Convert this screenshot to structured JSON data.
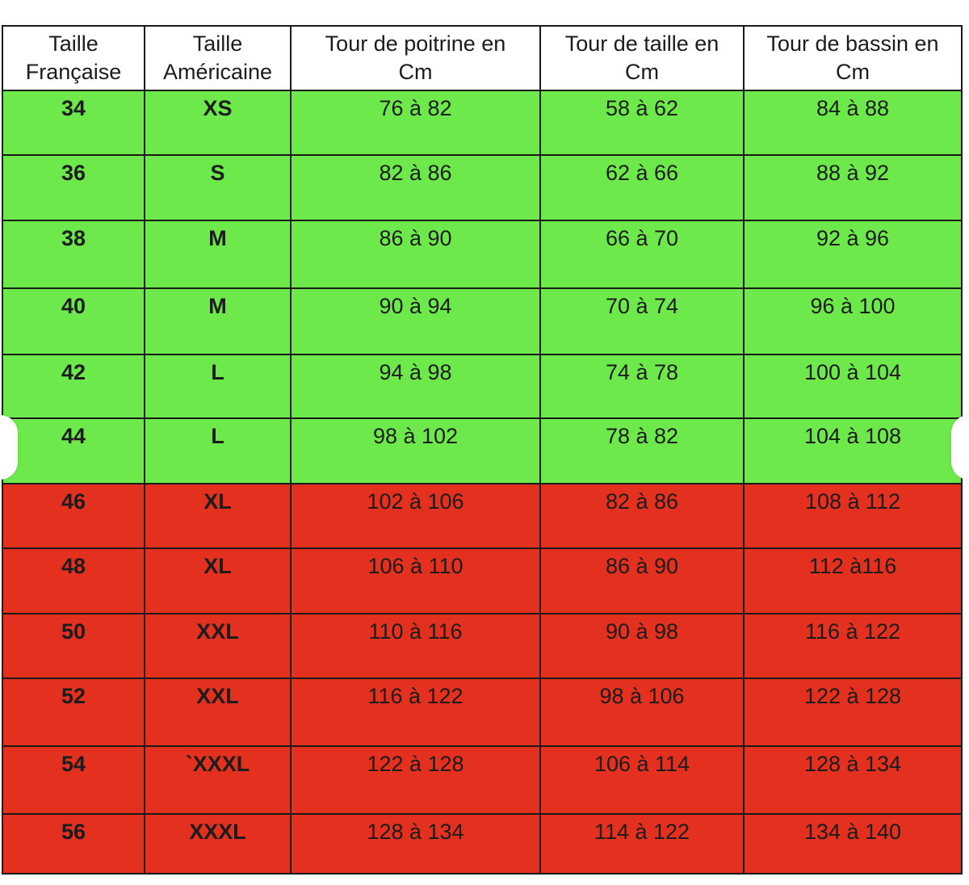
{
  "table": {
    "headers": [
      [
        "Taille",
        "Française"
      ],
      [
        "Taille",
        "Américaine"
      ],
      [
        "Tour de poitrine en",
        "Cm"
      ],
      [
        "Tour de taille en",
        "Cm"
      ],
      [
        "Tour de bassin en",
        "Cm"
      ]
    ],
    "rows": [
      {
        "fr": "34",
        "us": "XS",
        "poitrine": "76 à 82",
        "taille": "58 à 62",
        "bassin": "84 à 88",
        "status": "ok",
        "color": "#6ee94c"
      },
      {
        "fr": "36",
        "us": "S",
        "poitrine": "82 à 86",
        "taille": "62 à 66",
        "bassin": "88 à 92",
        "status": "ok",
        "color": "#6ee94c"
      },
      {
        "fr": "38",
        "us": "M",
        "poitrine": "86 à 90",
        "taille": "66 à 70",
        "bassin": "92 à 96",
        "status": "ok",
        "color": "#6ee94c"
      },
      {
        "fr": "40",
        "us": "M",
        "poitrine": "90 à 94",
        "taille": "70 à 74",
        "bassin": "96 à 100",
        "status": "ok",
        "color": "#6ee94c"
      },
      {
        "fr": "42",
        "us": "L",
        "poitrine": "94 à 98",
        "taille": "74 à 78",
        "bassin": "100 à 104",
        "status": "ok",
        "color": "#6ee94c"
      },
      {
        "fr": "44",
        "us": "L",
        "poitrine": "98 à 102",
        "taille": "78 à 82",
        "bassin": "104 à 108",
        "status": "ok",
        "color": "#6ee94c"
      },
      {
        "fr": "46",
        "us": "XL",
        "poitrine": "102 à 106",
        "taille": "82 à 86",
        "bassin": "108 à 112",
        "status": "big",
        "color": "#e3301f"
      },
      {
        "fr": "48",
        "us": "XL",
        "poitrine": "106 à 110",
        "taille": "86 à 90",
        "bassin": "112 à116",
        "status": "big",
        "color": "#e3301f"
      },
      {
        "fr": "50",
        "us": "XXL",
        "poitrine": "110 à 116",
        "taille": "90 à 98",
        "bassin": "116 à 122",
        "status": "big",
        "color": "#e3301f"
      },
      {
        "fr": "52",
        "us": "XXL",
        "poitrine": "116 à 122",
        "taille": "98 à 106",
        "bassin": "122 à 128",
        "status": "big",
        "color": "#e3301f"
      },
      {
        "fr": "54",
        "us": "`XXXL",
        "poitrine": "122 à 128",
        "taille": "106 à 114",
        "bassin": "128 à 134",
        "status": "big",
        "color": "#e3301f"
      },
      {
        "fr": "56",
        "us": "XXXL",
        "poitrine": "128 à 134",
        "taille": "114 à 122",
        "bassin": "134 à 140",
        "status": "big",
        "color": "#e3301f"
      }
    ]
  }
}
